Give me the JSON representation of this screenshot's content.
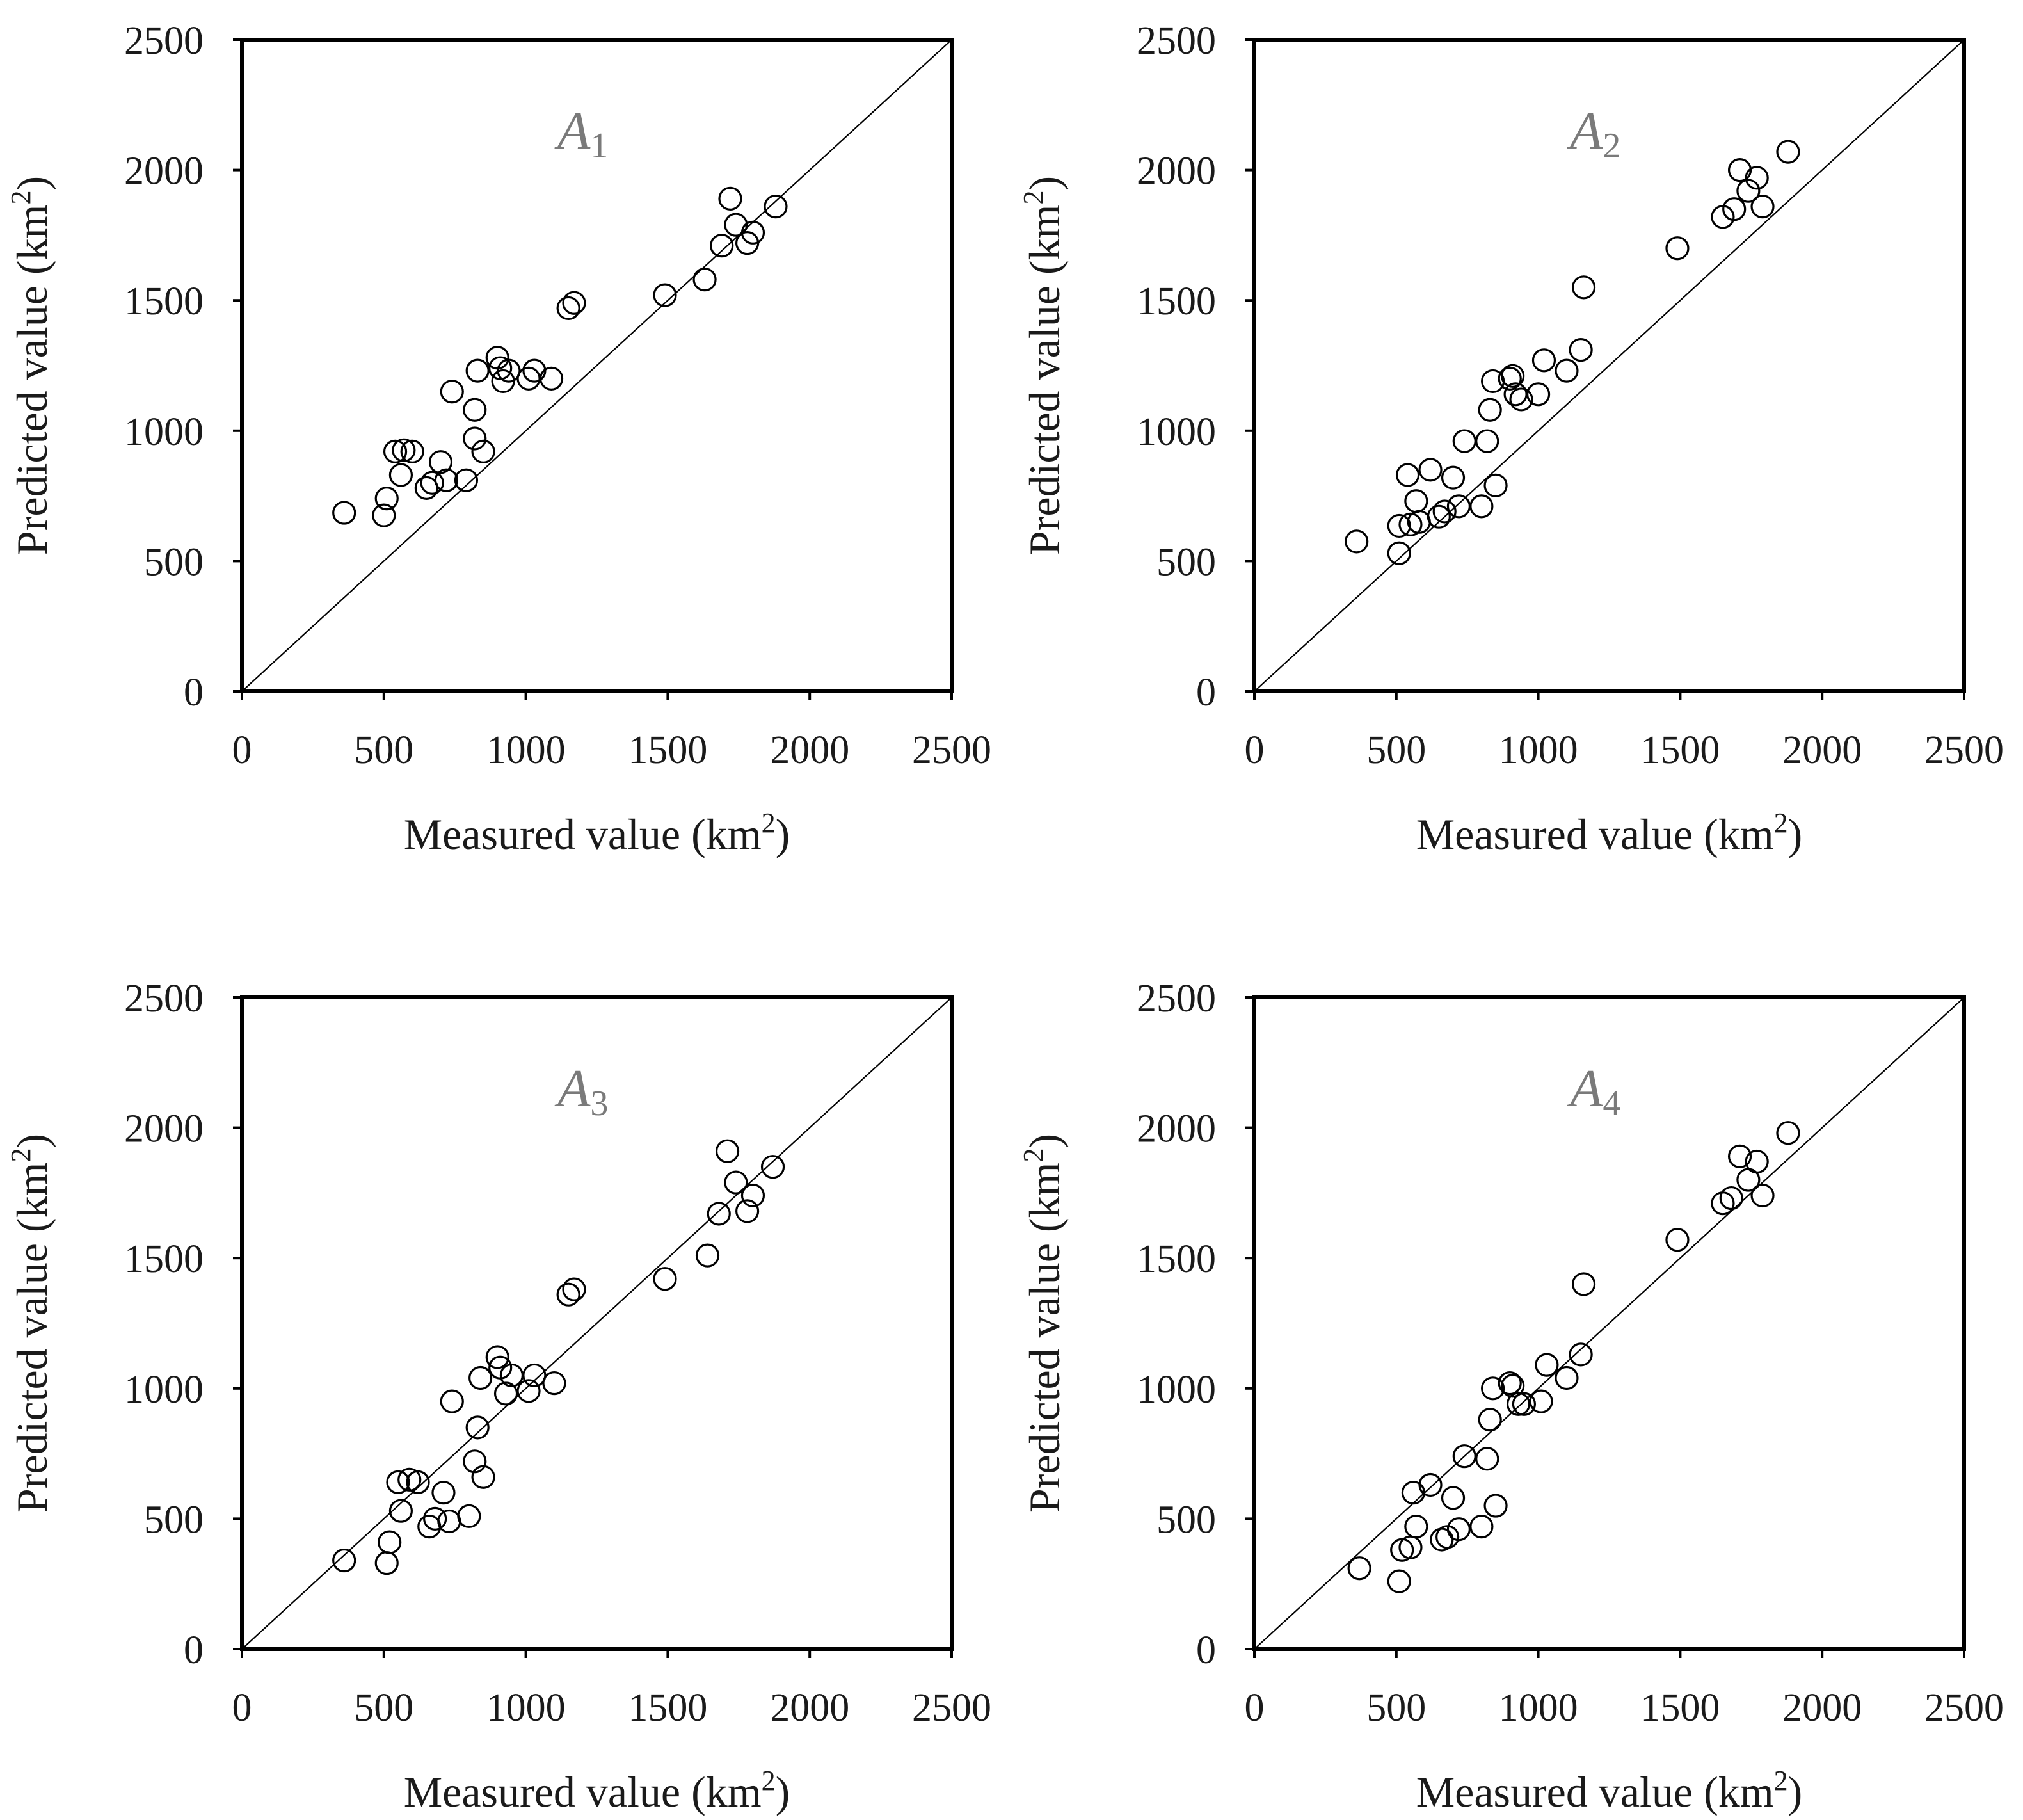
{
  "chart_data": [
    {
      "type": "scatter",
      "panel_label": "A",
      "panel_sub": "1",
      "xlabel": "Measured value (km",
      "ylabel": "Predicted value (km",
      "unit_sup": "2",
      "xlim": [
        0,
        2500
      ],
      "ylim": [
        0,
        2500
      ],
      "xticks": [
        "0",
        "500",
        "1000",
        "1500",
        "2000",
        "2500"
      ],
      "yticks": [
        "0",
        "500",
        "1000",
        "1500",
        "2000",
        "2500"
      ],
      "reference_line": "1:1",
      "points": [
        [
          360,
          685
        ],
        [
          500,
          675
        ],
        [
          510,
          740
        ],
        [
          540,
          920
        ],
        [
          560,
          830
        ],
        [
          570,
          925
        ],
        [
          600,
          920
        ],
        [
          650,
          780
        ],
        [
          670,
          800
        ],
        [
          700,
          880
        ],
        [
          720,
          810
        ],
        [
          740,
          1150
        ],
        [
          790,
          810
        ],
        [
          820,
          1080
        ],
        [
          820,
          970
        ],
        [
          830,
          1230
        ],
        [
          850,
          920
        ],
        [
          900,
          1280
        ],
        [
          910,
          1240
        ],
        [
          920,
          1190
        ],
        [
          940,
          1230
        ],
        [
          1010,
          1200
        ],
        [
          1030,
          1230
        ],
        [
          1090,
          1200
        ],
        [
          1150,
          1470
        ],
        [
          1170,
          1490
        ],
        [
          1490,
          1520
        ],
        [
          1630,
          1580
        ],
        [
          1690,
          1710
        ],
        [
          1720,
          1890
        ],
        [
          1740,
          1790
        ],
        [
          1780,
          1720
        ],
        [
          1800,
          1760
        ],
        [
          1880,
          1860
        ]
      ]
    },
    {
      "type": "scatter",
      "panel_label": "A",
      "panel_sub": "2",
      "xlabel": "Measured value (km",
      "ylabel": "Predicted value (km",
      "unit_sup": "2",
      "xlim": [
        0,
        2500
      ],
      "ylim": [
        0,
        2500
      ],
      "xticks": [
        "0",
        "500",
        "1000",
        "1500",
        "2000",
        "2500"
      ],
      "yticks": [
        "0",
        "500",
        "1000",
        "1500",
        "2000",
        "2500"
      ],
      "reference_line": "1:1",
      "points": [
        [
          360,
          575
        ],
        [
          510,
          530
        ],
        [
          510,
          635
        ],
        [
          540,
          830
        ],
        [
          550,
          640
        ],
        [
          570,
          730
        ],
        [
          580,
          650
        ],
        [
          620,
          850
        ],
        [
          650,
          670
        ],
        [
          670,
          690
        ],
        [
          700,
          820
        ],
        [
          720,
          710
        ],
        [
          740,
          960
        ],
        [
          800,
          710
        ],
        [
          820,
          960
        ],
        [
          830,
          1080
        ],
        [
          840,
          1190
        ],
        [
          850,
          790
        ],
        [
          900,
          1200
        ],
        [
          910,
          1210
        ],
        [
          920,
          1140
        ],
        [
          940,
          1120
        ],
        [
          1000,
          1140
        ],
        [
          1020,
          1270
        ],
        [
          1100,
          1230
        ],
        [
          1150,
          1310
        ],
        [
          1160,
          1550
        ],
        [
          1490,
          1700
        ],
        [
          1650,
          1820
        ],
        [
          1690,
          1850
        ],
        [
          1710,
          2000
        ],
        [
          1740,
          1920
        ],
        [
          1770,
          1970
        ],
        [
          1790,
          1860
        ],
        [
          1880,
          2070
        ]
      ]
    },
    {
      "type": "scatter",
      "panel_label": "A",
      "panel_sub": "3",
      "xlabel": "Measured value (km",
      "ylabel": "Predicted value (km",
      "unit_sup": "2",
      "xlim": [
        0,
        2500
      ],
      "ylim": [
        0,
        2500
      ],
      "xticks": [
        "0",
        "500",
        "1000",
        "1500",
        "2000",
        "2500"
      ],
      "yticks": [
        "0",
        "500",
        "1000",
        "1500",
        "2000",
        "2500"
      ],
      "reference_line": "1:1",
      "points": [
        [
          360,
          340
        ],
        [
          510,
          330
        ],
        [
          520,
          410
        ],
        [
          550,
          640
        ],
        [
          560,
          530
        ],
        [
          590,
          650
        ],
        [
          620,
          640
        ],
        [
          660,
          470
        ],
        [
          680,
          500
        ],
        [
          710,
          600
        ],
        [
          730,
          490
        ],
        [
          740,
          950
        ],
        [
          800,
          510
        ],
        [
          820,
          720
        ],
        [
          830,
          850
        ],
        [
          840,
          1040
        ],
        [
          850,
          660
        ],
        [
          900,
          1120
        ],
        [
          910,
          1080
        ],
        [
          930,
          980
        ],
        [
          950,
          1050
        ],
        [
          1010,
          990
        ],
        [
          1030,
          1050
        ],
        [
          1100,
          1020
        ],
        [
          1150,
          1360
        ],
        [
          1170,
          1380
        ],
        [
          1490,
          1420
        ],
        [
          1640,
          1510
        ],
        [
          1680,
          1670
        ],
        [
          1710,
          1910
        ],
        [
          1740,
          1790
        ],
        [
          1780,
          1680
        ],
        [
          1800,
          1740
        ],
        [
          1870,
          1850
        ]
      ]
    },
    {
      "type": "scatter",
      "panel_label": "A",
      "panel_sub": "4",
      "xlabel": "Measured value (km",
      "ylabel": "Predicted value (km",
      "unit_sup": "2",
      "xlim": [
        0,
        2500
      ],
      "ylim": [
        0,
        2500
      ],
      "xticks": [
        "0",
        "500",
        "1000",
        "1500",
        "2000",
        "2500"
      ],
      "yticks": [
        "0",
        "500",
        "1000",
        "1500",
        "2000",
        "2500"
      ],
      "reference_line": "1:1",
      "points": [
        [
          370,
          310
        ],
        [
          510,
          260
        ],
        [
          520,
          380
        ],
        [
          550,
          390
        ],
        [
          560,
          600
        ],
        [
          570,
          470
        ],
        [
          620,
          630
        ],
        [
          660,
          420
        ],
        [
          680,
          430
        ],
        [
          700,
          580
        ],
        [
          720,
          460
        ],
        [
          740,
          740
        ],
        [
          800,
          470
        ],
        [
          820,
          730
        ],
        [
          830,
          880
        ],
        [
          840,
          1000
        ],
        [
          850,
          550
        ],
        [
          900,
          1020
        ],
        [
          910,
          1010
        ],
        [
          930,
          940
        ],
        [
          950,
          940
        ],
        [
          1010,
          950
        ],
        [
          1030,
          1090
        ],
        [
          1100,
          1040
        ],
        [
          1150,
          1130
        ],
        [
          1160,
          1400
        ],
        [
          1490,
          1570
        ],
        [
          1650,
          1710
        ],
        [
          1680,
          1730
        ],
        [
          1710,
          1890
        ],
        [
          1740,
          1800
        ],
        [
          1770,
          1870
        ],
        [
          1790,
          1740
        ],
        [
          1880,
          1980
        ]
      ]
    }
  ]
}
